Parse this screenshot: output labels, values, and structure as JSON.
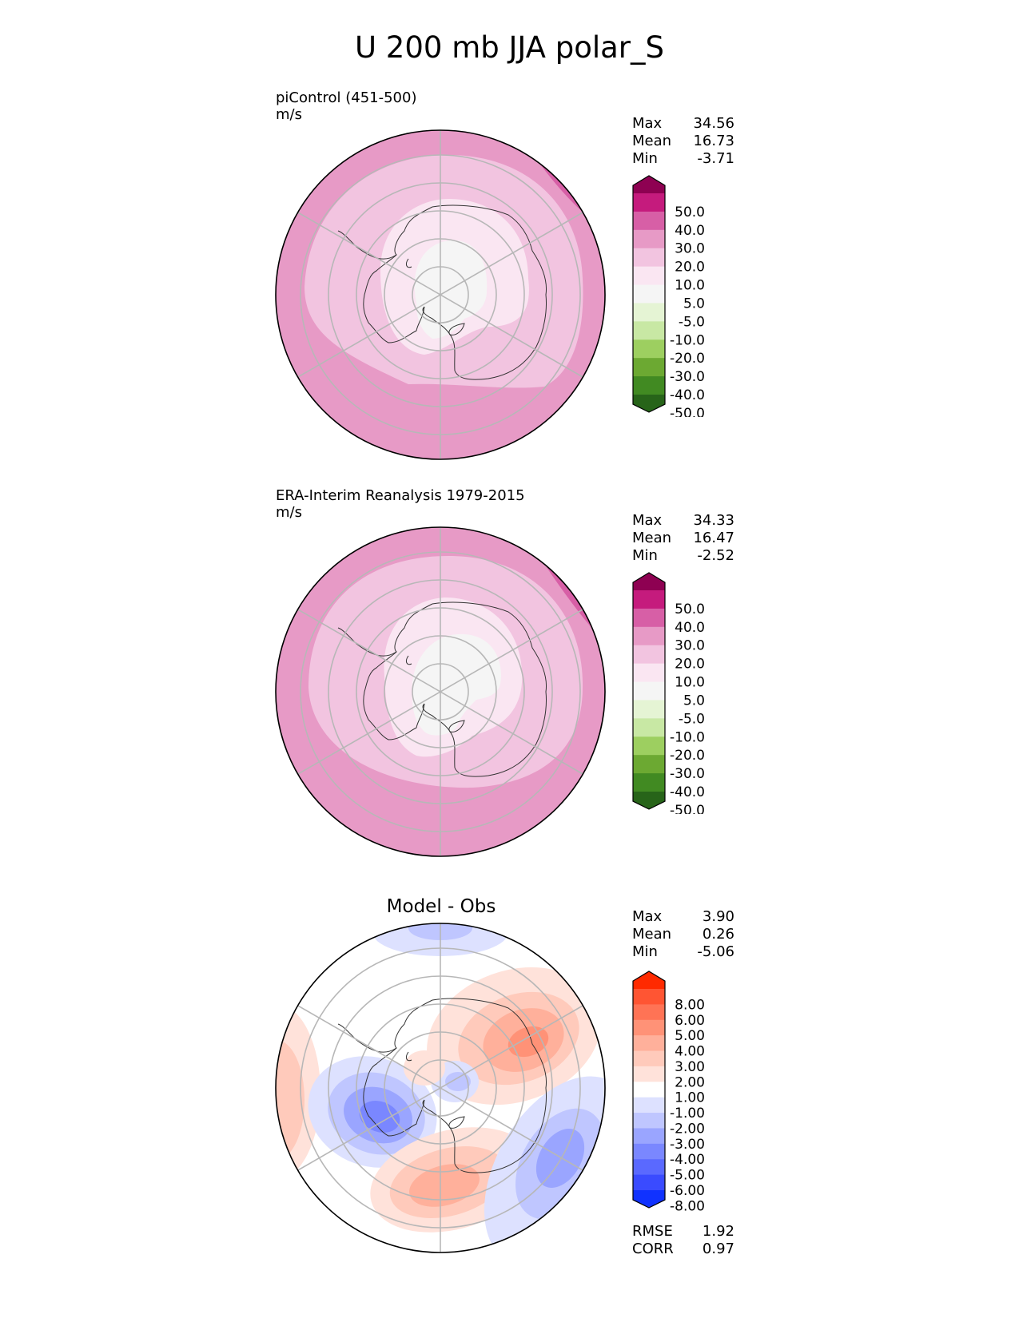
{
  "title": "U 200 mb JJA polar_S",
  "panels": [
    {
      "id": "test",
      "title_line1": "piControl (451-500)",
      "title_line2": "m/s",
      "stats": {
        "max_label": "Max",
        "max": "34.56",
        "mean_label": "Mean",
        "mean": "16.73",
        "min_label": "Min",
        "min": "-3.71"
      }
    },
    {
      "id": "ref",
      "title_line1": "ERA-Interim Reanalysis 1979-2015",
      "title_line2": "m/s",
      "stats": {
        "max_label": "Max",
        "max": "34.33",
        "mean_label": "Mean",
        "mean": "16.47",
        "min_label": "Min",
        "min": "-2.52"
      }
    },
    {
      "id": "diff",
      "title_center": "Model - Obs",
      "stats": {
        "max_label": "Max",
        "max": "3.90",
        "mean_label": "Mean",
        "mean": "0.26",
        "min_label": "Min",
        "min": "-5.06"
      },
      "metrics": {
        "rmse_label": "RMSE",
        "rmse": "1.92",
        "corr_label": "CORR",
        "corr": "0.97"
      }
    }
  ],
  "colorbars": {
    "field": {
      "labels": [
        "50.0",
        "40.0",
        "30.0",
        "20.0",
        "10.0",
        "5.0",
        "-5.0",
        "-10.0",
        "-20.0",
        "-30.0",
        "-40.0",
        "-50.0"
      ],
      "colors": [
        "#8e0152",
        "#c51b7d",
        "#d75fa6",
        "#e79ac6",
        "#f2c4e0",
        "#fae6f2",
        "#f5f5f5",
        "#e5f4d4",
        "#c8e8a4",
        "#9dcf60",
        "#6ca932",
        "#418a22",
        "#276419"
      ]
    },
    "diff": {
      "labels": [
        "8.00",
        "6.00",
        "5.00",
        "4.00",
        "3.00",
        "2.00",
        "1.00",
        "-1.00",
        "-2.00",
        "-3.00",
        "-4.00",
        "-5.00",
        "-6.00",
        "-8.00"
      ],
      "colors": [
        "#ff2a00",
        "#ff5533",
        "#ff7355",
        "#ff9277",
        "#ffb09b",
        "#ffcabb",
        "#ffe2da",
        "#ffffff",
        "#dde1ff",
        "#bfc6ff",
        "#9aa5ff",
        "#7a87ff",
        "#5a69ff",
        "#3a4bff",
        "#1032ff"
      ]
    }
  },
  "chart_data": [
    {
      "type": "heatmap",
      "projection": "south-polar-stereographic",
      "title": "piControl (451-500)",
      "units": "m/s",
      "stats": {
        "max": 34.56,
        "mean": 16.73,
        "min": -3.71
      },
      "levels": [
        -50,
        -40,
        -30,
        -20,
        -10,
        -5,
        5,
        10,
        20,
        30,
        40,
        50
      ]
    },
    {
      "type": "heatmap",
      "projection": "south-polar-stereographic",
      "title": "ERA-Interim Reanalysis 1979-2015",
      "units": "m/s",
      "stats": {
        "max": 34.33,
        "mean": 16.47,
        "min": -2.52
      },
      "levels": [
        -50,
        -40,
        -30,
        -20,
        -10,
        -5,
        5,
        10,
        20,
        30,
        40,
        50
      ]
    },
    {
      "type": "heatmap",
      "projection": "south-polar-stereographic",
      "title": "Model - Obs",
      "stats": {
        "max": 3.9,
        "mean": 0.26,
        "min": -5.06
      },
      "rmse": 1.92,
      "corr": 0.97,
      "levels": [
        -8,
        -6,
        -5,
        -4,
        -3,
        -2,
        -1,
        1,
        2,
        3,
        4,
        5,
        6,
        8
      ]
    }
  ]
}
